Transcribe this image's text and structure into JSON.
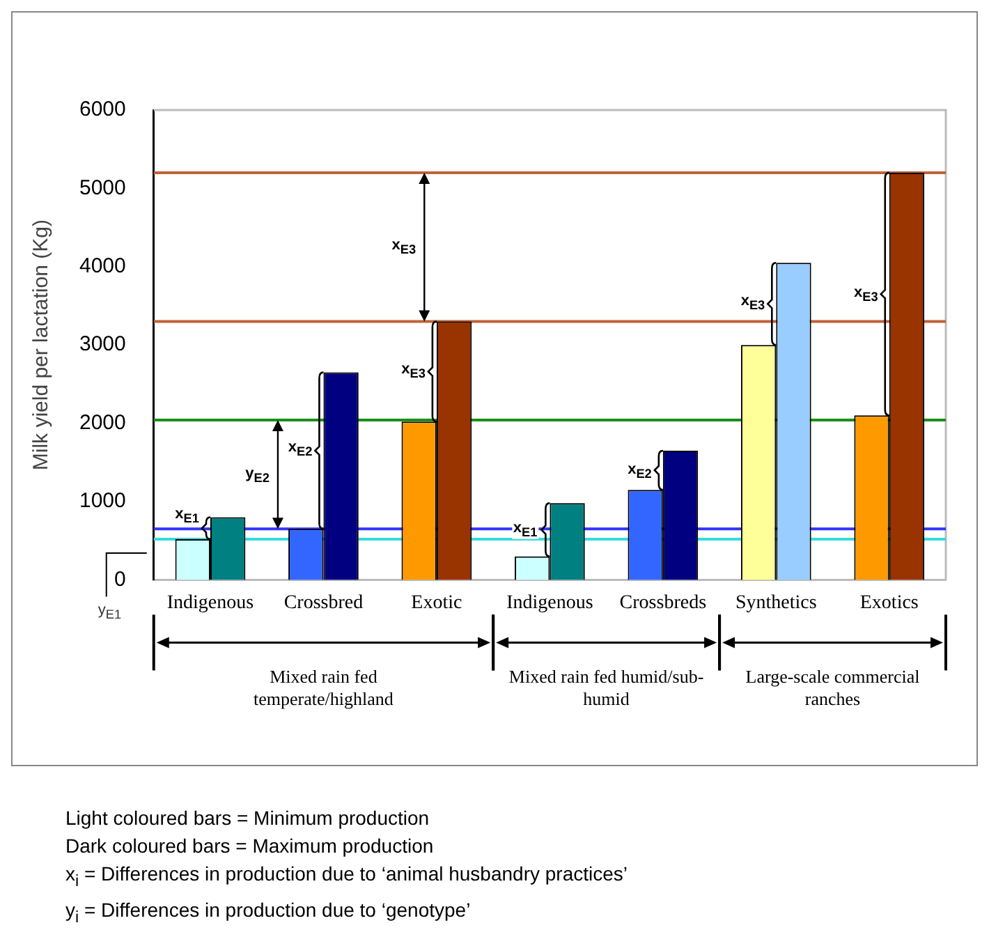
{
  "chart_data": {
    "type": "bar",
    "ylabel": "Milk yield per lactation (Kg)",
    "categories": [
      "Indigenous",
      "Crossbred",
      "Exotic",
      "Indigenous",
      "Crossbreds",
      "Synthetics",
      "Exotics"
    ],
    "series": [
      {
        "colors": [
          "#ccffff",
          "#3366ff",
          "#ff9900",
          "#ccffff",
          "#3366ff",
          "#ffff99",
          "#ff9900"
        ],
        "values": [
          520,
          650,
          2020,
          300,
          1150,
          3000,
          2100
        ]
      },
      {
        "colors": [
          "#008080",
          "#000080",
          "#993300",
          "#008080",
          "#000080",
          "#99ccff",
          "#993300"
        ],
        "values": [
          800,
          2650,
          3300,
          980,
          1650,
          4050,
          5200
        ]
      }
    ],
    "ylim": [
      0,
      6000
    ],
    "yticks": [
      0,
      1000,
      2000,
      3000,
      4000,
      5000,
      6000
    ],
    "grid": false,
    "legend": false,
    "ref_lines": [
      {
        "axis": "y",
        "value": 5200,
        "color": "#c0623a"
      },
      {
        "axis": "y",
        "value": 3300,
        "color": "#c0623a"
      },
      {
        "axis": "y",
        "value": 2040,
        "color": "#1a8f1a"
      },
      {
        "axis": "y",
        "value": 650,
        "color": "#3333ff"
      },
      {
        "axis": "y",
        "value": 520,
        "color": "#33dddd"
      }
    ],
    "annotations": [
      {
        "text": "x$_{E1}$",
        "x": "Indigenous",
        "y": 820
      },
      {
        "text": "x$_{E2}$",
        "x": "Crossbred",
        "y": 1670
      },
      {
        "text": "x$_{E3}$",
        "x": "Exotic",
        "y": 2680
      },
      {
        "text": "x$_{E2}$",
        "x": "Crossbreds",
        "y": 1400
      },
      {
        "text": "x$_{E3}$",
        "x": "Synthetics",
        "y": 3550
      },
      {
        "text": "x$_{E3}$",
        "x": "Exotics",
        "y": 3650
      },
      "y$_{E2}$",
      "x$_{E3}$",
      "x$_{E1}$",
      "y$_{E1}$",
      "Mixed rain fed temperate/highland",
      "Mixed rain fed humid/sub-humid",
      "Large-scale commercial ranches",
      "Light coloured bars = Minimum production",
      "Dark coloured bars = Maximum production",
      "x$_{i}$ = Differences in production due to ‘animal husbandry practices’",
      "y$_{i}$ = Differences in production due to ‘genotype’"
    ]
  }
}
